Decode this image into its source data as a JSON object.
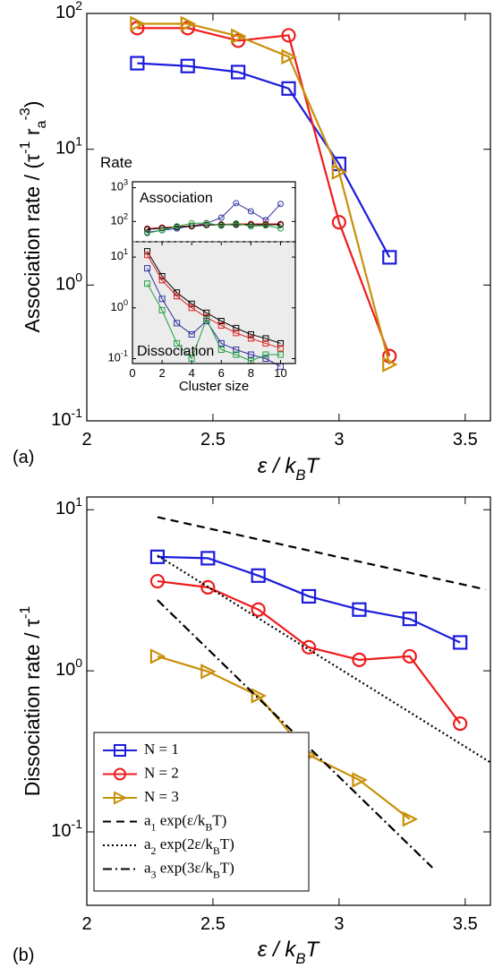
{
  "chart_data": [
    {
      "type": "line",
      "panel_label": "(a)",
      "xlabel": "ε / k_{B}T",
      "ylabel": "Association rate / (τ^{-1} r_{a}^{-3})",
      "yscale": "log",
      "xlim": [
        2,
        3.6
      ],
      "xticks": [
        2,
        2.5,
        3,
        3.5
      ],
      "ylim": [
        0.1,
        100
      ],
      "yticks": [
        {
          "value": 0.1,
          "label": "10^{-1}"
        },
        {
          "value": 1,
          "label": "10^{0}"
        },
        {
          "value": 10,
          "label": "10^{1}"
        },
        {
          "value": 100,
          "label": "10^{2}"
        }
      ],
      "x": [
        2.2,
        2.4,
        2.6,
        2.8,
        3,
        3.2
      ],
      "series": [
        {
          "color": "#1c1cdc",
          "marker": "square",
          "values": [
            43,
            41,
            37,
            28,
            7.8,
            1.6
          ]
        },
        {
          "color": "#ee1c1c",
          "marker": "circle",
          "values": [
            78,
            78,
            63,
            69,
            2.9,
            0.3
          ]
        },
        {
          "color": "#c8900a",
          "marker": "triangle-right",
          "values": [
            84,
            84,
            68,
            48,
            6.8,
            0.26
          ]
        }
      ]
    },
    {
      "type": "line",
      "title": "Rate",
      "annotation": "Association",
      "yscale": "log",
      "background": "#ffffff",
      "marker": "circle",
      "xlim": [
        0,
        11
      ],
      "ylim": [
        25,
        1500
      ],
      "yticks": [
        {
          "value": 100,
          "label": "10^{2}"
        },
        {
          "value": 1000,
          "label": "10^{3}"
        }
      ],
      "x": [
        1,
        2,
        3,
        4,
        5,
        6,
        7,
        8,
        9,
        10
      ],
      "series": [
        {
          "color": "#3030a0",
          "values": [
            48,
            55,
            62,
            74,
            88,
            130,
            350,
            200,
            110,
            330
          ]
        },
        {
          "color": "#e02020",
          "values": [
            62,
            66,
            70,
            75,
            80,
            82,
            85,
            85,
            85,
            85
          ]
        },
        {
          "color": "#000000",
          "values": [
            58,
            63,
            68,
            72,
            78,
            80,
            80,
            80,
            80,
            80
          ]
        },
        {
          "color": "#20a040",
          "values": [
            45,
            55,
            72,
            88,
            90,
            75,
            88,
            72,
            76,
            62
          ]
        }
      ]
    },
    {
      "type": "line",
      "annotation": "Dissociation",
      "xlabel": "Cluster size",
      "yscale": "log",
      "background": "#ececec",
      "marker": "square",
      "xlim": [
        0,
        11
      ],
      "xticks": [
        0,
        2,
        4,
        6,
        8,
        10
      ],
      "ylim": [
        0.08,
        20
      ],
      "yticks": [
        {
          "value": 0.1,
          "label": "10^{-1}"
        },
        {
          "value": 1,
          "label": "10^{0}"
        },
        {
          "value": 10,
          "label": "10^{1}"
        }
      ],
      "x": [
        1,
        2,
        3,
        4,
        5,
        6,
        7,
        8,
        9,
        10
      ],
      "series": [
        {
          "color": "#000000",
          "values": [
            13,
            4.2,
            2,
            1.2,
            0.8,
            0.55,
            0.4,
            0.3,
            0.25,
            0.2
          ]
        },
        {
          "color": "#e02020",
          "values": [
            11,
            3.5,
            1.7,
            1,
            0.65,
            0.45,
            0.32,
            0.25,
            0.2,
            0.16
          ]
        },
        {
          "color": "#3030a0",
          "values": [
            6,
            1.5,
            0.5,
            0.3,
            0.55,
            0.2,
            0.15,
            0.12,
            0.1,
            0.07
          ]
        },
        {
          "color": "#20a040",
          "values": [
            3,
            0.9,
            0.2,
            0.1,
            0.6,
            0.15,
            0.12,
            0.09,
            0.12,
            0.12
          ]
        }
      ]
    },
    {
      "type": "line",
      "panel_label": "(b)",
      "xlabel": "ε / k_{B}T",
      "ylabel": "Dissociation rate / τ^{-1}",
      "yscale": "log",
      "legend": "lower left",
      "xlim": [
        2,
        3.6
      ],
      "xticks": [
        2,
        2.5,
        3,
        3.5
      ],
      "ylim": [
        0.035,
        12
      ],
      "yticks": [
        {
          "value": 0.1,
          "label": "10^{-1}"
        },
        {
          "value": 1,
          "label": "10^{0}"
        },
        {
          "value": 10,
          "label": "10^{1}"
        }
      ],
      "series": [
        {
          "name": "N = 1",
          "color": "#1c1cdc",
          "marker": "square",
          "x": [
            2.28,
            2.48,
            2.68,
            2.88,
            3.08,
            3.28,
            3.48
          ],
          "values": [
            5.1,
            5,
            3.9,
            2.9,
            2.4,
            2.1,
            1.5
          ]
        },
        {
          "name": "N = 2",
          "color": "#ee1c1c",
          "marker": "circle",
          "x": [
            2.28,
            2.48,
            2.68,
            2.88,
            3.08,
            3.28,
            3.48
          ],
          "values": [
            3.6,
            3.3,
            2.4,
            1.4,
            1.17,
            1.23,
            0.47
          ]
        },
        {
          "name": "N = 3",
          "color": "#c8900a",
          "marker": "triangle-right",
          "x": [
            2.28,
            2.48,
            2.68,
            2.88,
            3.08,
            3.28
          ],
          "values": [
            1.23,
            0.99,
            0.7,
            0.3,
            0.21,
            0.12
          ]
        },
        {
          "name": "a_{1} exp(ε/k_{B}T)",
          "color": "#000000",
          "dash": "dashed",
          "x": [
            2.28,
            3.58
          ],
          "values": [
            9,
            3.2
          ]
        },
        {
          "name": "a_{2} exp(2ε/k_{B}T)",
          "color": "#000000",
          "dash": "dotted",
          "x": [
            2.28,
            3.6
          ],
          "values": [
            5.2,
            0.27
          ]
        },
        {
          "name": "a_{3} exp(3ε/k_{B}T)",
          "color": "#000000",
          "dash": "dashdot",
          "x": [
            2.28,
            3.37
          ],
          "values": [
            2.75,
            0.06
          ]
        }
      ]
    }
  ]
}
